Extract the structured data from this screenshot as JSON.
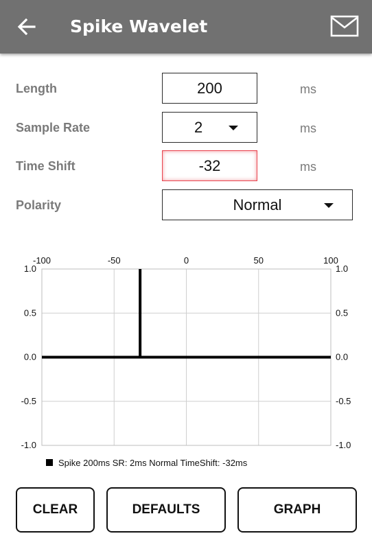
{
  "appbar": {
    "title": "Spike Wavelet",
    "back_icon": "arrow-left-icon",
    "mail_icon": "mail-icon"
  },
  "form": {
    "length": {
      "label": "Length",
      "value": "200",
      "unit": "ms"
    },
    "sample_rate": {
      "label": "Sample Rate",
      "value": "2",
      "unit": "ms"
    },
    "time_shift": {
      "label": "Time Shift",
      "value": "-32",
      "unit": "ms",
      "error_color": "#e8434e"
    },
    "polarity": {
      "label": "Polarity",
      "value": "Normal"
    }
  },
  "chart_data": {
    "type": "line",
    "title": "",
    "xlabel": "",
    "ylabel": "",
    "xlim": [
      -100,
      100
    ],
    "ylim": [
      -1.0,
      1.0
    ],
    "x_ticks": [
      "-100",
      "-50",
      "0",
      "50",
      "100"
    ],
    "x_tick_values": [
      -100,
      -50,
      0,
      50,
      100
    ],
    "y_ticks": [
      "1.0",
      "0.5",
      "0.0",
      "-0.5",
      "-1.0"
    ],
    "y_tick_values": [
      1.0,
      0.5,
      0.0,
      -0.5,
      -1.0
    ],
    "grid": true,
    "legend_position": "bottom-left",
    "series": [
      {
        "name": "Spike 200ms SR: 2ms Normal TimeShift: -32ms",
        "color": "#000000",
        "points": [
          [
            -100,
            0
          ],
          [
            -32,
            0
          ],
          [
            -32,
            1.0
          ],
          [
            -32,
            0
          ],
          [
            100,
            0
          ]
        ]
      }
    ]
  },
  "buttons": {
    "clear": "CLEAR",
    "defaults": "DEFAULTS",
    "graph": "GRAPH"
  }
}
